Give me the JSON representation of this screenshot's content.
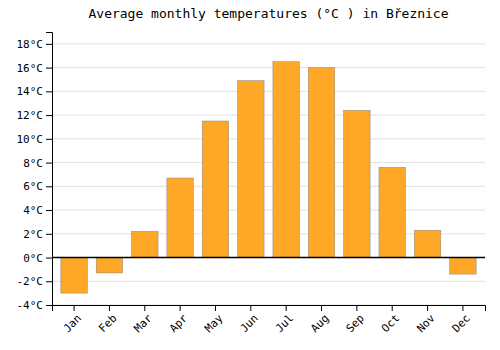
{
  "chart_data": {
    "type": "bar",
    "title": "Average monthly temperatures (°C ) in Březnice",
    "categories": [
      "Jan",
      "Feb",
      "Mar",
      "Apr",
      "May",
      "Jun",
      "Jul",
      "Aug",
      "Sep",
      "Oct",
      "Nov",
      "Dec"
    ],
    "values": [
      -3.0,
      -1.3,
      2.2,
      6.7,
      11.5,
      14.9,
      16.5,
      16.0,
      12.4,
      7.6,
      2.3,
      -1.4
    ],
    "color": "#FFA726",
    "ylim": [
      -4,
      19
    ],
    "yticks": [
      {
        "value": -4,
        "label": "-4°C"
      },
      {
        "value": -2,
        "label": "-2°C"
      },
      {
        "value": 0,
        "label": "0°C"
      },
      {
        "value": 2,
        "label": "2°C"
      },
      {
        "value": 4,
        "label": "4°C"
      },
      {
        "value": 6,
        "label": "6°C"
      },
      {
        "value": 8,
        "label": "8°C"
      },
      {
        "value": 10,
        "label": "10°C"
      },
      {
        "value": 12,
        "label": "12°C"
      },
      {
        "value": 14,
        "label": "14°C"
      },
      {
        "value": 16,
        "label": "16°C"
      },
      {
        "value": 18,
        "label": "18°C"
      }
    ],
    "grid": true
  }
}
